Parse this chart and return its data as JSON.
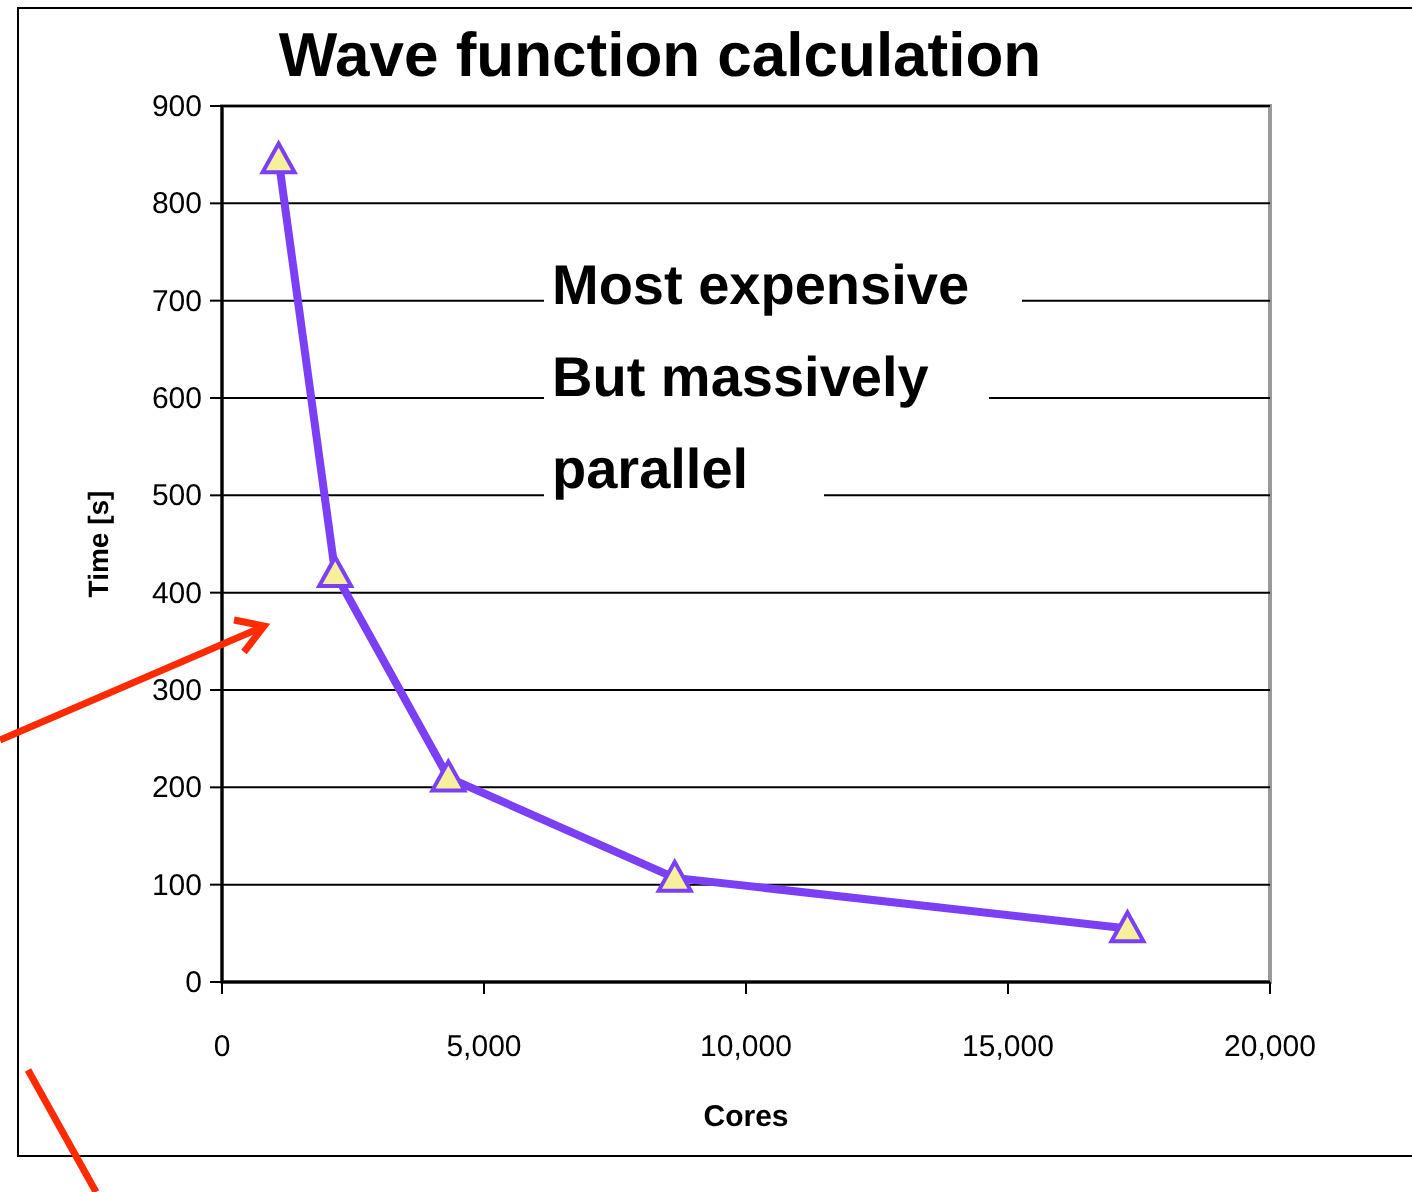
{
  "chart_data": {
    "type": "line",
    "title": "Wave function calculation",
    "xlabel": "Cores",
    "ylabel": "Time [s]",
    "x": [
      1080,
      2160,
      4320,
      8640,
      17280
    ],
    "series": [
      {
        "color": "#7b3ff5",
        "values": [
          845,
          420,
          210,
          107,
          55
        ]
      }
    ],
    "xlim": [
      0,
      20000
    ],
    "xticks": [
      {
        "value": 0,
        "label": "0"
      },
      {
        "value": 5000,
        "label": "5,000"
      },
      {
        "value": 10000,
        "label": "10,000"
      },
      {
        "value": 15000,
        "label": "15,000"
      },
      {
        "value": 20000,
        "label": "20,000"
      }
    ],
    "ylim": [
      0,
      900
    ],
    "yticks": [
      0,
      100,
      200,
      300,
      400,
      500,
      600,
      700,
      800,
      900
    ],
    "grid": "y",
    "marker": "triangle",
    "line_style": "solid",
    "annotations": [
      "Most expensive\nBut massively\nparallel"
    ]
  }
}
